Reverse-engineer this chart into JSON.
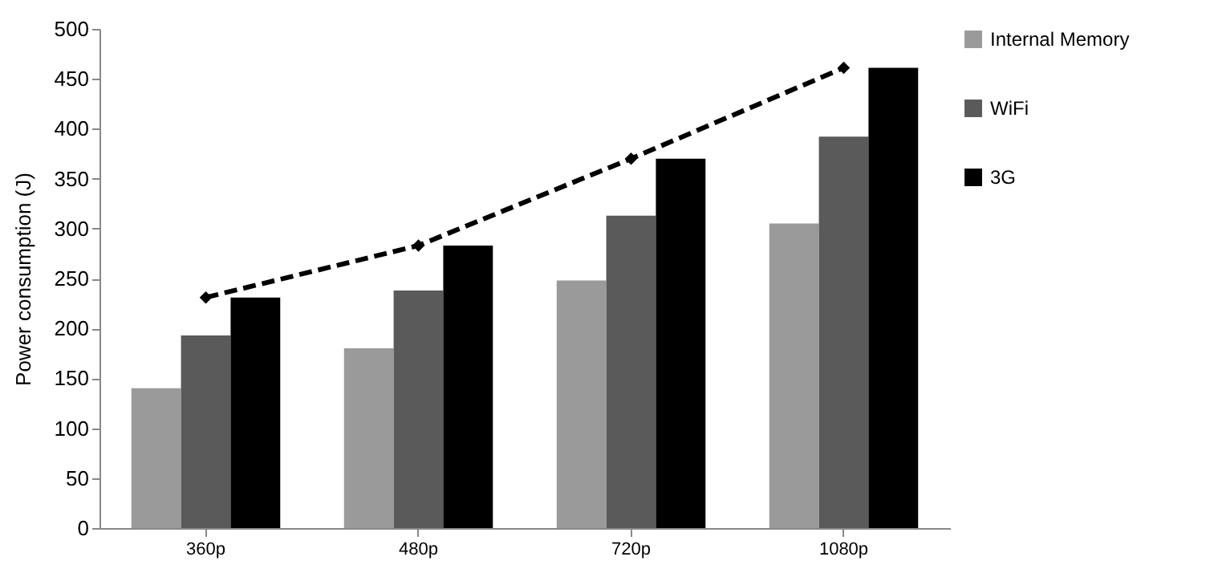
{
  "chart_data": {
    "type": "bar",
    "ylabel": "Power consumption (J)",
    "categories": [
      "360p",
      "480p",
      "720p",
      "1080p"
    ],
    "series": [
      {
        "name": "Internal Memory",
        "color": "#9a9a9a",
        "values": [
          140,
          180,
          248,
          305
        ]
      },
      {
        "name": "WiFi",
        "color": "#5a5a5a",
        "values": [
          193,
          238,
          313,
          392
        ]
      },
      {
        "name": "3G",
        "color": "#000000",
        "values": [
          231,
          283,
          370,
          461
        ]
      },
      {
        "type": "line",
        "color": "#000000",
        "line_style": "dashed",
        "marker": "diamond",
        "values": [
          231,
          283,
          370,
          461
        ]
      }
    ],
    "ylim": [
      0,
      500
    ],
    "yticks": [
      0,
      50,
      100,
      150,
      200,
      250,
      300,
      350,
      400,
      450,
      500
    ],
    "grid": false,
    "legend": "right"
  }
}
